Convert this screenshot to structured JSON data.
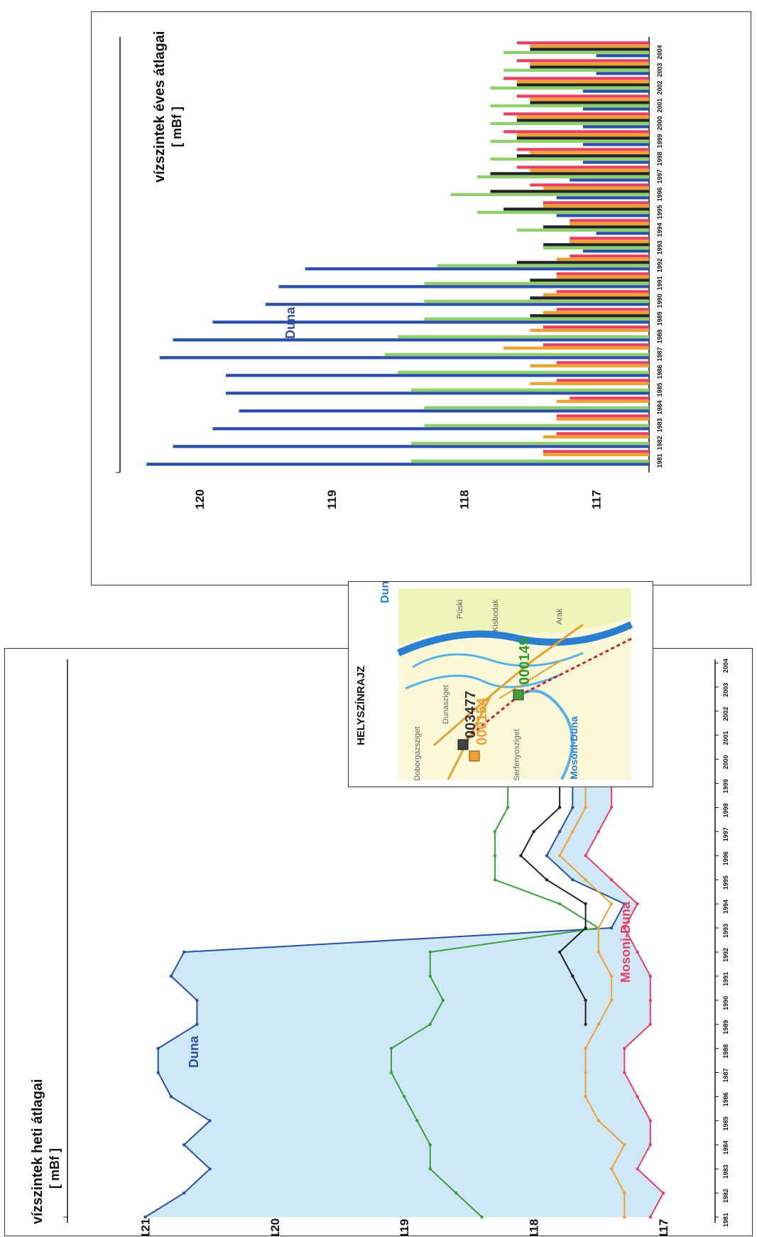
{
  "weekly_chart": {
    "title": "vízszintek heti átlagai",
    "unit": "[ mBf ]",
    "label_duna": "Duna",
    "label_mosoni": "Mosoni-Duna",
    "y_ticks": [
      "121",
      "120",
      "119",
      "118",
      "117"
    ],
    "years": [
      "1981",
      "1982",
      "1983",
      "1984",
      "1985",
      "1986",
      "1987",
      "1988",
      "1989",
      "1990",
      "1991",
      "1992",
      "1993",
      "1994",
      "1995",
      "1996",
      "1997",
      "1998",
      "1999",
      "2000",
      "2001",
      "2002",
      "2003",
      "2004"
    ]
  },
  "annual_chart": {
    "title": "vízszintek éves átlagai",
    "unit": "[ mBf ]",
    "label_duna": "Duna",
    "y_ticks": [
      "120",
      "119",
      "118",
      "117"
    ],
    "years": [
      "1981",
      "1982",
      "1983",
      "1984",
      "1985",
      "1986",
      "1987",
      "1988",
      "1989",
      "1990",
      "1991",
      "1992",
      "1993",
      "1994",
      "1995",
      "1996",
      "1997",
      "1998",
      "1999",
      "2000",
      "2001",
      "2002",
      "2003",
      "2004"
    ]
  },
  "map": {
    "title": "HELYSZÍNRAJZ",
    "label_duna": "Duna",
    "label_mosoni": "Mosoni-Duna",
    "well_000149": "000149",
    "well_003477": "003477",
    "well_000154": "000154",
    "place_kisbodak": "Kisbodak",
    "place_puski": "Püski",
    "place_arak": "Arak",
    "place_serfenyosziget": "Serfenyosziget",
    "place_2": "Dunasziget",
    "place_3": "Doborgazsziget"
  },
  "chart_data": [
    {
      "type": "line",
      "title": "vízszintek heti átlagai",
      "ylabel": "[ mBf ]",
      "ylim": [
        116.6,
        121.6
      ],
      "x": [
        1981,
        1982,
        1983,
        1984,
        1985,
        1986,
        1987,
        1988,
        1989,
        1990,
        1991,
        1992,
        1993,
        1994,
        1995,
        1996,
        1997,
        1998,
        1999,
        2000,
        2001,
        2002,
        2003,
        2004
      ],
      "series": [
        {
          "name": "Duna",
          "color": "#2a4fa8",
          "values": [
            121.0,
            120.7,
            120.5,
            120.7,
            120.5,
            120.8,
            120.9,
            120.9,
            120.6,
            120.6,
            120.8,
            120.7,
            117.4,
            117.3,
            117.7,
            117.9,
            117.8,
            117.7,
            117.7,
            117.7,
            117.7,
            117.8,
            117.7,
            117.6
          ]
        },
        {
          "color": "#3aa03a",
          "values": [
            118.4,
            118.6,
            118.8,
            118.8,
            118.9,
            119.0,
            119.1,
            119.1,
            118.8,
            118.7,
            118.8,
            118.8,
            117.5,
            117.8,
            118.3,
            118.3,
            118.3,
            118.2,
            118.2,
            118.1,
            118.2,
            118.2,
            118.1,
            118.1
          ]
        },
        {
          "color": "#222222",
          "values": [
            null,
            null,
            null,
            null,
            null,
            null,
            null,
            null,
            117.6,
            117.6,
            117.7,
            117.8,
            117.6,
            117.6,
            117.9,
            118.1,
            118.0,
            117.8,
            117.8,
            117.8,
            117.7,
            117.8,
            117.7,
            117.7
          ]
        },
        {
          "color": "#f0a030",
          "values": [
            117.3,
            117.3,
            117.4,
            117.3,
            117.5,
            117.6,
            117.6,
            117.6,
            117.5,
            117.4,
            117.4,
            117.5,
            117.5,
            117.4,
            117.6,
            117.8,
            117.7,
            117.6,
            117.6,
            117.6,
            117.5,
            117.6,
            117.6,
            117.5
          ]
        },
        {
          "name": "Mosoni-Duna",
          "color": "#e84060",
          "values": [
            117.1,
            117.0,
            117.2,
            117.1,
            117.1,
            117.2,
            117.3,
            117.3,
            117.1,
            117.1,
            117.1,
            117.2,
            117.3,
            117.2,
            117.4,
            117.6,
            117.5,
            117.4,
            117.4,
            117.4,
            117.3,
            117.4,
            117.4,
            117.3
          ]
        }
      ]
    },
    {
      "type": "bar",
      "title": "vízszintek éves átlagai",
      "ylabel": "[ mBf ]",
      "ylim": [
        116.6,
        120.6
      ],
      "categories": [
        "1981",
        "1982",
        "1983",
        "1984",
        "1985",
        "1986",
        "1987",
        "1988",
        "1989",
        "1990",
        "1991",
        "1992",
        "1993",
        "1994",
        "1995",
        "1996",
        "1997",
        "1998",
        "1999",
        "2000",
        "2001",
        "2002",
        "2003",
        "2004"
      ],
      "series": [
        {
          "color": "#e84060",
          "values": [
            117.4,
            117.3,
            117.3,
            117.2,
            117.3,
            117.3,
            117.4,
            117.4,
            117.3,
            117.3,
            117.3,
            117.2,
            117.2,
            117.2,
            117.4,
            117.5,
            117.6,
            117.6,
            117.7,
            117.7,
            117.6,
            117.7,
            117.6,
            117.6
          ]
        },
        {
          "color": "#f0a030",
          "values": [
            117.4,
            117.4,
            117.3,
            117.3,
            117.5,
            117.5,
            117.7,
            117.5,
            117.4,
            117.4,
            117.3,
            117.3,
            117.2,
            117.2,
            117.4,
            117.4,
            117.5,
            117.5,
            117.6,
            117.6,
            117.5,
            117.6,
            117.5,
            117.5
          ]
        },
        {
          "color": "#222222",
          "values": [
            null,
            null,
            null,
            null,
            null,
            null,
            null,
            null,
            117.5,
            117.5,
            117.5,
            117.6,
            117.4,
            117.4,
            117.7,
            117.8,
            117.8,
            117.6,
            117.6,
            117.6,
            117.5,
            117.6,
            117.5,
            117.5
          ]
        },
        {
          "color": "#8ed06a",
          "values": [
            118.4,
            118.4,
            118.3,
            118.3,
            118.4,
            118.5,
            118.6,
            118.5,
            118.3,
            118.3,
            118.3,
            118.2,
            117.4,
            117.6,
            117.9,
            118.1,
            117.9,
            117.8,
            117.8,
            117.8,
            117.8,
            117.8,
            117.7,
            117.7
          ]
        },
        {
          "name": "Duna",
          "color": "#2a4fa8",
          "values": [
            120.4,
            120.2,
            119.9,
            119.7,
            119.8,
            119.8,
            120.3,
            120.2,
            119.9,
            119.5,
            119.4,
            119.2,
            117.1,
            117.0,
            117.3,
            117.3,
            117.2,
            117.1,
            117.1,
            117.1,
            117.1,
            117.1,
            117.0,
            117.0
          ]
        }
      ]
    }
  ]
}
